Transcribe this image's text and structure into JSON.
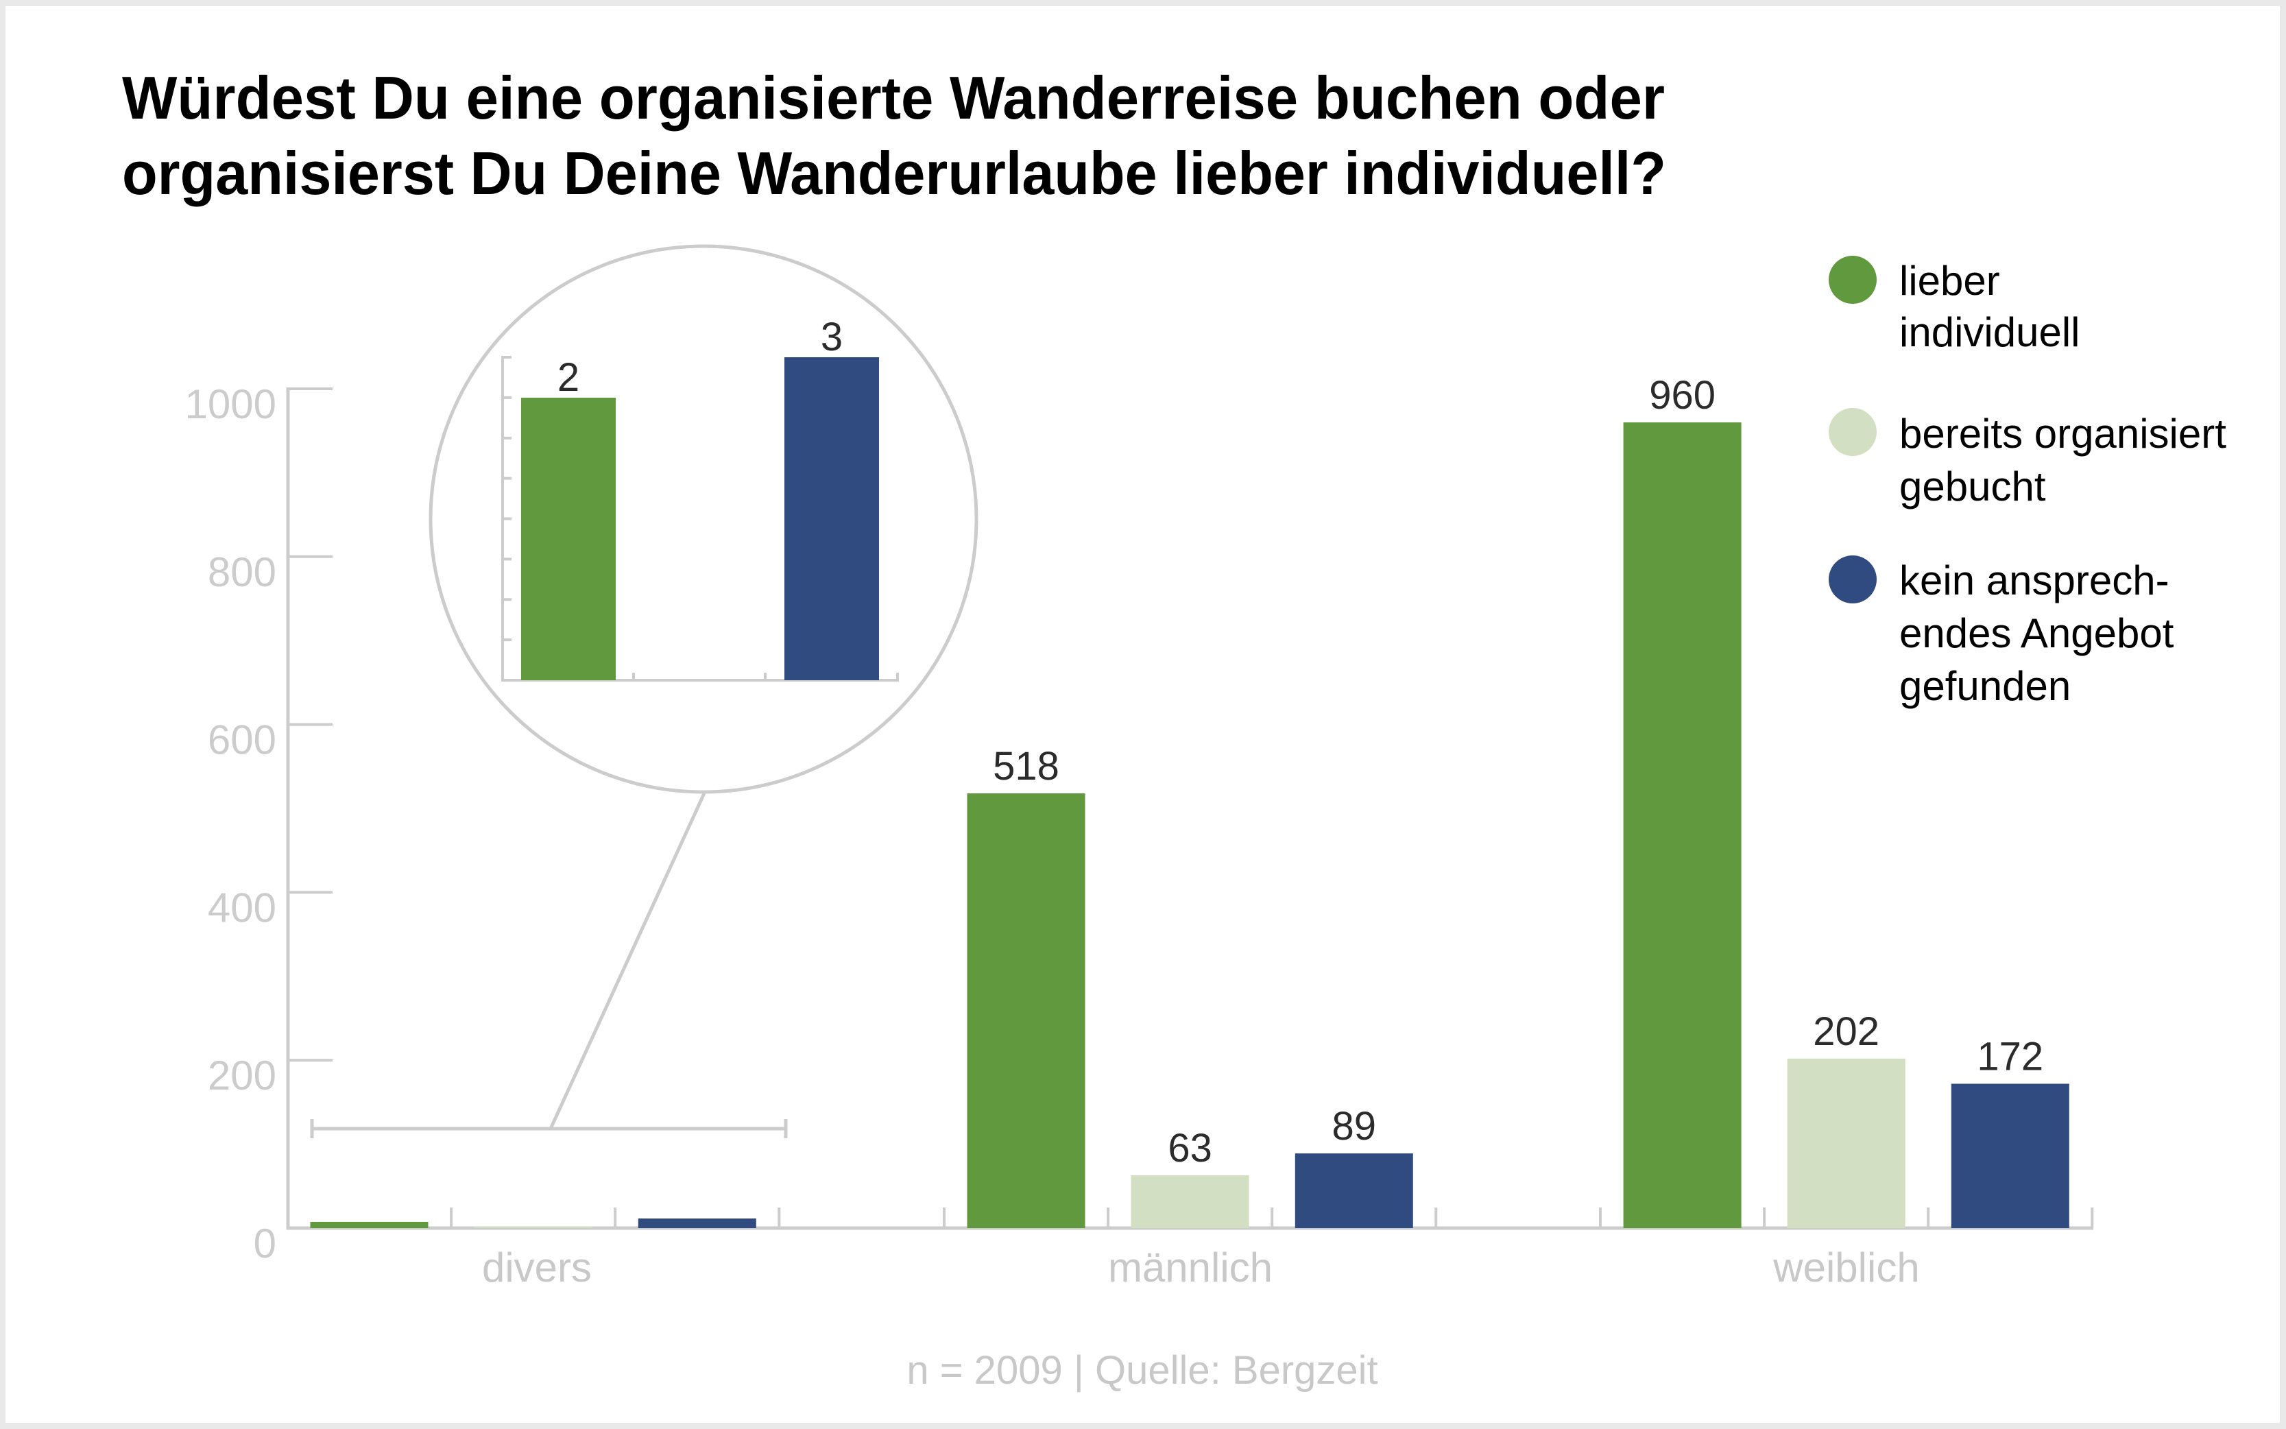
{
  "chart_data": {
    "type": "bar",
    "title": "Würdest Du eine organisierte Wanderreise buchen oder organisierst Du Deine Wanderurlaube lieber individuell?",
    "title_lines": [
      "Würdest Du eine organisierte Wanderreise buchen oder",
      "organisierst Du Deine Wanderurlaube lieber individuell?"
    ],
    "categories": [
      "divers",
      "männlich",
      "weiblich"
    ],
    "series": [
      {
        "name": "lieber individuell",
        "legend_lines": [
          "lieber",
          "individuell"
        ],
        "color": "#61993e",
        "values": [
          2,
          518,
          960
        ]
      },
      {
        "name": "bereits organisiert gebucht",
        "legend_lines": [
          "bereits organisiert",
          "gebucht"
        ],
        "color": "#d3dfc2",
        "values": [
          0,
          63,
          202
        ]
      },
      {
        "name": "kein ansprechendes Angebot gefunden",
        "legend_lines": [
          "kein ansprech-",
          "endes Angebot",
          "gefunden"
        ],
        "color": "#2f4b80",
        "values": [
          3,
          89,
          172
        ]
      }
    ],
    "value_labels": {
      "divers": [
        "",
        "",
        ""
      ],
      "männlich": [
        "518",
        "63",
        "89"
      ],
      "weiblich": [
        "960",
        "202",
        "172"
      ]
    },
    "ylim": [
      0,
      1000
    ],
    "yticks": [
      0,
      200,
      400,
      600,
      800,
      1000
    ],
    "ytick_labels": [
      "0",
      "200",
      "400",
      "600",
      "800",
      "1000"
    ],
    "xlabel": "",
    "ylabel": "",
    "grid": false,
    "legend_position": "top-right",
    "inset": {
      "category": "divers",
      "series_shown": [
        "lieber individuell",
        "kein ansprechendes Angebot gefunden"
      ],
      "values": [
        2,
        3
      ],
      "value_labels": [
        "2",
        "3"
      ]
    },
    "footer": "n = 2009 | Quelle: Bergzeit"
  },
  "colors": {
    "frame": "#e9e9e9",
    "panel": "#ffffff",
    "axis": "#cccccc",
    "label_gray": "#c8c8c8",
    "value_text": "#2b2b2b"
  }
}
